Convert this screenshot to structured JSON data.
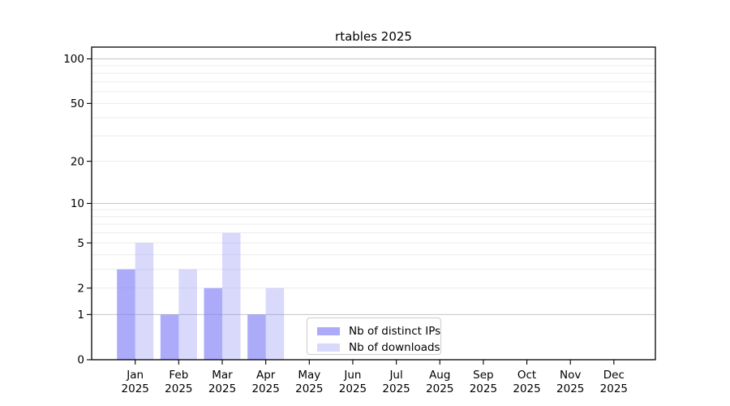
{
  "chart_data": {
    "type": "bar",
    "title": "rtables 2025",
    "categories": [
      "Jan 2025",
      "Feb 2025",
      "Mar 2025",
      "Apr 2025",
      "May 2025",
      "Jun 2025",
      "Jul 2025",
      "Aug 2025",
      "Sep 2025",
      "Oct 2025",
      "Nov 2025",
      "Dec 2025"
    ],
    "series": [
      {
        "name": "Nb of distinct IPs",
        "color": "rgba(128,128,246,0.66)",
        "values": [
          3,
          1,
          2,
          1,
          0,
          0,
          0,
          0,
          0,
          0,
          0,
          0
        ]
      },
      {
        "name": "Nb of downloads",
        "color": "rgba(128,128,246,0.30)",
        "values": [
          5,
          3,
          6,
          2,
          0,
          0,
          0,
          0,
          0,
          0,
          0,
          0
        ]
      }
    ],
    "xlabel": "",
    "ylabel": "",
    "yscale": "log1p",
    "ymax": 120,
    "ytick_values": [
      0,
      1,
      2,
      5,
      10,
      20,
      50,
      100
    ],
    "major_gridlines": [
      1,
      10,
      100
    ],
    "minor_gridlines": [
      2,
      3,
      4,
      5,
      6,
      7,
      8,
      9,
      20,
      30,
      40,
      50,
      60,
      70,
      80,
      90
    ],
    "grid": "horizontal",
    "legend_position": "inside-bottom-center",
    "colors": {
      "spine": "#000000",
      "major_grid": "#c6c6c6",
      "minor_grid": "#ececec",
      "legend_border": "#cccccc"
    }
  }
}
